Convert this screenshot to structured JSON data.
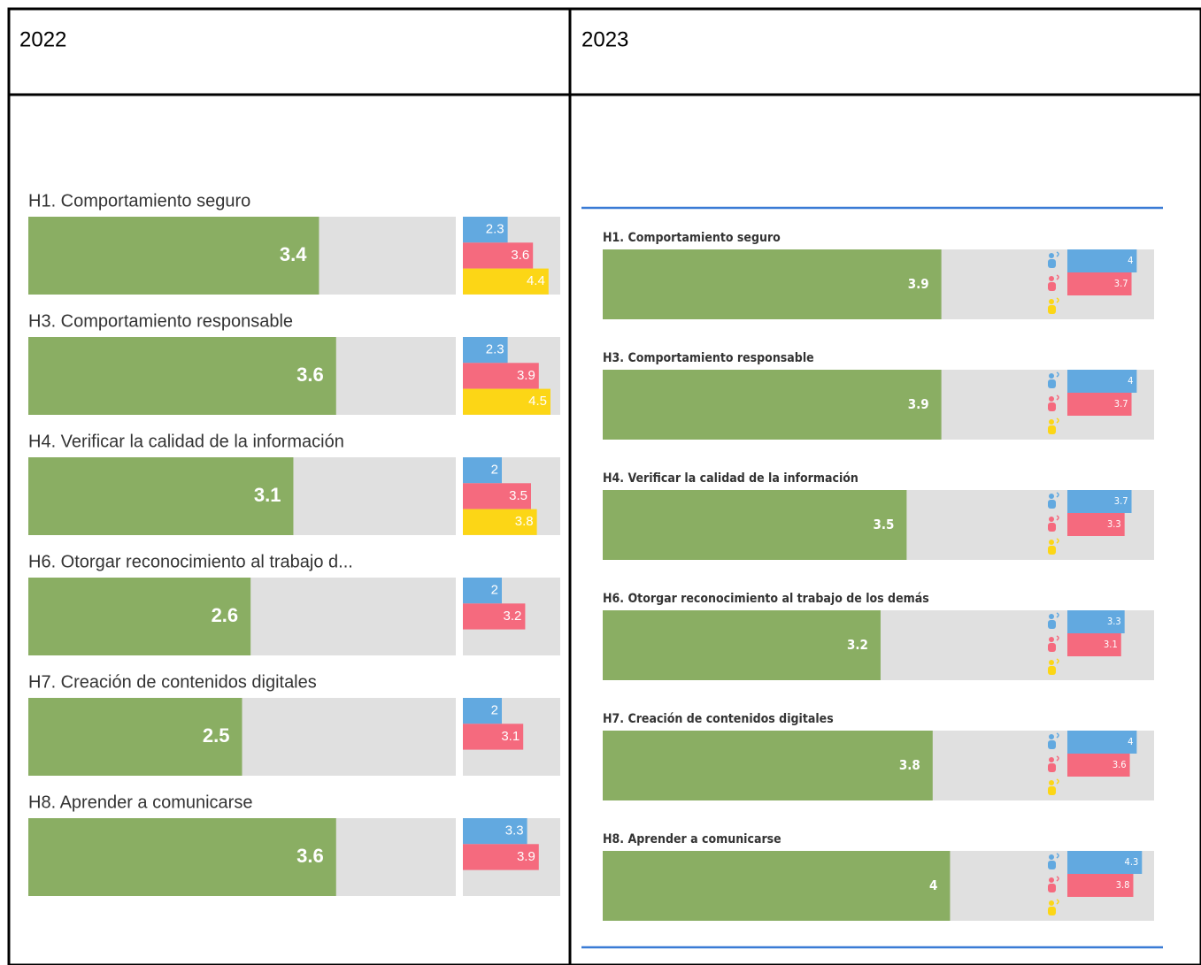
{
  "table": {
    "headers": [
      "2022",
      "2023"
    ]
  },
  "chart_data": [
    {
      "type": "bar",
      "categories": [
        "H1. Comportamiento seguro",
        "H3. Comportamiento responsable",
        "H4. Verificar la calidad de la información",
        "H6. Otorgar reconocimiento al trabajo d...",
        "H7. Creación de contenidos digitales",
        "H8. Aprender a comunicarse"
      ],
      "xlim": [
        0,
        5
      ],
      "x2lim": [
        0,
        5
      ],
      "series": [
        {
          "color": "#8aae63",
          "values": [
            3.4,
            3.6,
            3.1,
            2.6,
            2.5,
            3.6
          ]
        },
        {
          "color": "#62a9e0",
          "axis": "x2",
          "values": [
            2.3,
            2.3,
            2,
            2,
            2,
            3.3
          ]
        },
        {
          "color": "#f56a7e",
          "axis": "x2",
          "values": [
            3.6,
            3.9,
            3.5,
            3.2,
            3.1,
            3.9
          ]
        },
        {
          "color": "#fcd616",
          "axis": "x2",
          "values": [
            4.4,
            4.5,
            3.8,
            null,
            null,
            null
          ]
        }
      ]
    },
    {
      "type": "bar",
      "categories": [
        "H1. Comportamiento seguro",
        "H3. Comportamiento responsable",
        "H4. Verificar la calidad de la información",
        "H6. Otorgar reconocimiento al trabajo de los demás",
        "H7. Creación de contenidos digitales",
        "H8. Aprender a comunicarse"
      ],
      "xlim": [
        0,
        6.35
      ],
      "x2lim": [
        0,
        5
      ],
      "icon_colors": [
        "#62a9e0",
        "#f56a7e",
        "#fcd616"
      ],
      "series": [
        {
          "color": "#8aae63",
          "values": [
            3.9,
            3.9,
            3.5,
            3.2,
            3.8,
            4
          ]
        },
        {
          "color": "#62a9e0",
          "axis": "x2",
          "values": [
            4,
            4,
            3.7,
            3.3,
            4,
            4.3
          ]
        },
        {
          "color": "#f56a7e",
          "axis": "x2",
          "values": [
            3.7,
            3.7,
            3.3,
            3.1,
            3.6,
            3.8
          ]
        }
      ]
    }
  ]
}
